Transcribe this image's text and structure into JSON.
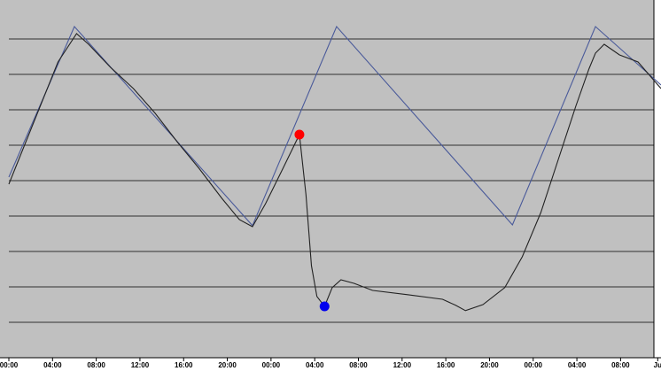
{
  "chart_data": {
    "type": "line",
    "xlim": [
      -0.81,
      59.7
    ],
    "ylim": [
      0,
      10
    ],
    "xticks": [
      {
        "value": 0,
        "label": "00:00"
      },
      {
        "value": 4,
        "label": "04:00"
      },
      {
        "value": 8,
        "label": "08:00"
      },
      {
        "value": 12,
        "label": "12:00"
      },
      {
        "value": 16,
        "label": "16:00"
      },
      {
        "value": 20,
        "label": "20:00"
      },
      {
        "value": 24,
        "label": "00:00"
      },
      {
        "value": 28,
        "label": "04:00"
      },
      {
        "value": 32,
        "label": "08:00"
      },
      {
        "value": 36,
        "label": "12:00"
      },
      {
        "value": 40,
        "label": "16:00"
      },
      {
        "value": 44,
        "label": "20:00"
      },
      {
        "value": 48,
        "label": "00:00"
      },
      {
        "value": 52,
        "label": "04:00"
      },
      {
        "value": 56,
        "label": "08:00"
      },
      {
        "value": 59.4,
        "label": "Ju"
      }
    ],
    "yticks": [
      1,
      2,
      3,
      4,
      5,
      6,
      7,
      8,
      9
    ],
    "grid": true,
    "series": [
      {
        "color": "#4a5a9a",
        "x": [
          0,
          6,
          22.3,
          30,
          46.1,
          53.7,
          59.7
        ],
        "values": [
          5.1,
          9.35,
          3.73,
          9.35,
          3.75,
          9.35,
          7.7
        ]
      },
      {
        "color": "#222222",
        "x": [
          0,
          4.5,
          6.2,
          7.3,
          9.3,
          11.4,
          13.4,
          15.4,
          17.4,
          19.5,
          21.1,
          22.3,
          23.5,
          25.1,
          26.6,
          27.2,
          27.7,
          28.2,
          28.9,
          29.6,
          30.4,
          31.6,
          33.3,
          36.5,
          39.7,
          40.9,
          41.8,
          43.4,
          45.4,
          47,
          48.7,
          50.3,
          51.9,
          53.1,
          53.7,
          54.5,
          55.9,
          57.6,
          59.7
        ],
        "values": [
          4.9,
          8.35,
          9.15,
          8.85,
          8.2,
          7.6,
          6.9,
          6.1,
          5.35,
          4.5,
          3.9,
          3.7,
          4.35,
          5.35,
          6.3,
          4.6,
          2.6,
          1.73,
          1.45,
          1.98,
          2.2,
          2.1,
          1.9,
          1.78,
          1.65,
          1.48,
          1.33,
          1.5,
          1.98,
          2.85,
          4.1,
          5.6,
          7.1,
          8.15,
          8.6,
          8.85,
          8.55,
          8.35,
          7.6
        ]
      }
    ],
    "points": [
      {
        "x": 26.6,
        "y": 6.3,
        "color": "#ff0000"
      },
      {
        "x": 28.9,
        "y": 1.45,
        "color": "#0000ee"
      }
    ]
  }
}
